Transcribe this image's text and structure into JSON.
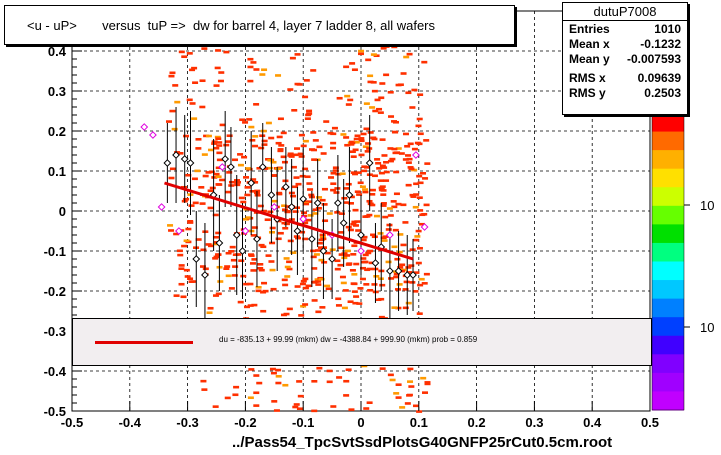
{
  "title": "<u - uP>       versus  tuP =>  dw for barrel 4, layer 7 ladder 8, all wafers",
  "stats": {
    "name": "dutuP7008",
    "rows": [
      {
        "label": "Entries",
        "value": "1010"
      },
      {
        "label": "Mean x",
        "value": "-0.1232"
      },
      {
        "label": "Mean y",
        "value": "-0.007593"
      },
      {
        "label": "RMS x",
        "value": "0.09639"
      },
      {
        "label": "RMS y",
        "value": "0.2503"
      }
    ]
  },
  "fit_legend": "du = -835.13 + 99.99 (mkm) dw = -4388.84 + 999.90 (mkm) prob = 0.859",
  "xlabel": "../Pass54_TpcSvtSsdPlotsG40GNFP25rCut0.5cm.root",
  "colorbar_labels": [
    "10",
    "10"
  ],
  "chart_data": {
    "type": "scatter",
    "xlim": [
      -0.5,
      0.5
    ],
    "ylim": [
      -0.5,
      0.5
    ],
    "x_ticks": [
      "-0.5",
      "-0.4",
      "-0.3",
      "-0.2",
      "-0.1",
      "0",
      "0.1",
      "0.2",
      "0.3",
      "0.4",
      "0.5"
    ],
    "y_ticks": [
      "-0.5",
      "-0.4",
      "-0.3",
      "-0.2",
      "-0.1",
      "0",
      "0.1",
      "0.2",
      "0.3",
      "0.4",
      "0.5"
    ],
    "grid": true,
    "fit_line": {
      "x": [
        -0.34,
        0.09
      ],
      "y": [
        0.07,
        -0.12
      ],
      "color": "#e00000"
    },
    "profile_black": [
      {
        "x": -0.335,
        "y": 0.12,
        "err": 0.1
      },
      {
        "x": -0.32,
        "y": 0.14,
        "err": 0.12
      },
      {
        "x": -0.305,
        "y": 0.13,
        "err": 0.11
      },
      {
        "x": -0.295,
        "y": 0.12,
        "err": 0.13
      },
      {
        "x": -0.285,
        "y": -0.12,
        "err": 0.12
      },
      {
        "x": -0.27,
        "y": -0.16,
        "err": 0.13
      },
      {
        "x": -0.255,
        "y": 0.04,
        "err": 0.14
      },
      {
        "x": -0.245,
        "y": -0.08,
        "err": 0.12
      },
      {
        "x": -0.235,
        "y": 0.13,
        "err": 0.12
      },
      {
        "x": -0.225,
        "y": 0.11,
        "err": 0.1
      },
      {
        "x": -0.215,
        "y": -0.06,
        "err": 0.15
      },
      {
        "x": -0.205,
        "y": -0.1,
        "err": 0.12
      },
      {
        "x": -0.19,
        "y": 0.07,
        "err": 0.13
      },
      {
        "x": -0.18,
        "y": -0.07,
        "err": 0.12
      },
      {
        "x": -0.17,
        "y": 0.11,
        "err": 0.11
      },
      {
        "x": -0.155,
        "y": 0.04,
        "err": 0.12
      },
      {
        "x": -0.145,
        "y": -0.02,
        "err": 0.13
      },
      {
        "x": -0.13,
        "y": 0.06,
        "err": 0.1
      },
      {
        "x": -0.12,
        "y": 0.01,
        "err": 0.12
      },
      {
        "x": -0.11,
        "y": -0.05,
        "err": 0.11
      },
      {
        "x": -0.1,
        "y": 0.03,
        "err": 0.13
      },
      {
        "x": -0.085,
        "y": -0.07,
        "err": 0.12
      },
      {
        "x": -0.075,
        "y": 0.02,
        "err": 0.11
      },
      {
        "x": -0.065,
        "y": -0.1,
        "err": 0.12
      },
      {
        "x": -0.05,
        "y": -0.12,
        "err": 0.1
      },
      {
        "x": -0.04,
        "y": 0.02,
        "err": 0.12
      },
      {
        "x": -0.03,
        "y": -0.03,
        "err": 0.11
      },
      {
        "x": -0.02,
        "y": 0.04,
        "err": 0.12
      },
      {
        "x": 0.0,
        "y": -0.06,
        "err": 0.1
      },
      {
        "x": 0.015,
        "y": 0.12,
        "err": 0.12
      },
      {
        "x": 0.025,
        "y": -0.13,
        "err": 0.1
      },
      {
        "x": 0.035,
        "y": -0.09,
        "err": 0.11
      },
      {
        "x": 0.05,
        "y": -0.15,
        "err": 0.12
      },
      {
        "x": 0.065,
        "y": -0.15,
        "err": 0.1
      },
      {
        "x": 0.08,
        "y": -0.16,
        "err": 0.1
      },
      {
        "x": 0.09,
        "y": -0.16,
        "err": 0.09
      }
    ],
    "profile_magenta": [
      {
        "x": -0.375,
        "y": 0.21
      },
      {
        "x": -0.36,
        "y": 0.19
      },
      {
        "x": -0.345,
        "y": 0.01
      },
      {
        "x": -0.315,
        "y": -0.05
      },
      {
        "x": -0.24,
        "y": 0.11
      },
      {
        "x": -0.2,
        "y": -0.05
      },
      {
        "x": -0.15,
        "y": 0.01
      },
      {
        "x": -0.1,
        "y": -0.02
      },
      {
        "x": -0.05,
        "y": -0.06
      },
      {
        "x": 0.0,
        "y": -0.1
      },
      {
        "x": 0.05,
        "y": -0.06
      },
      {
        "x": 0.095,
        "y": 0.14
      },
      {
        "x": 0.11,
        "y": -0.04
      }
    ],
    "colorbar_colors": [
      "#ff0000",
      "#ff6a00",
      "#ffb000",
      "#ffe000",
      "#ccff00",
      "#66ff00",
      "#00e000",
      "#00ff80",
      "#00ffff",
      "#00c8ff",
      "#0080ff",
      "#0040ff",
      "#4000ff",
      "#8000ff",
      "#a000ff",
      "#c000ff"
    ]
  }
}
